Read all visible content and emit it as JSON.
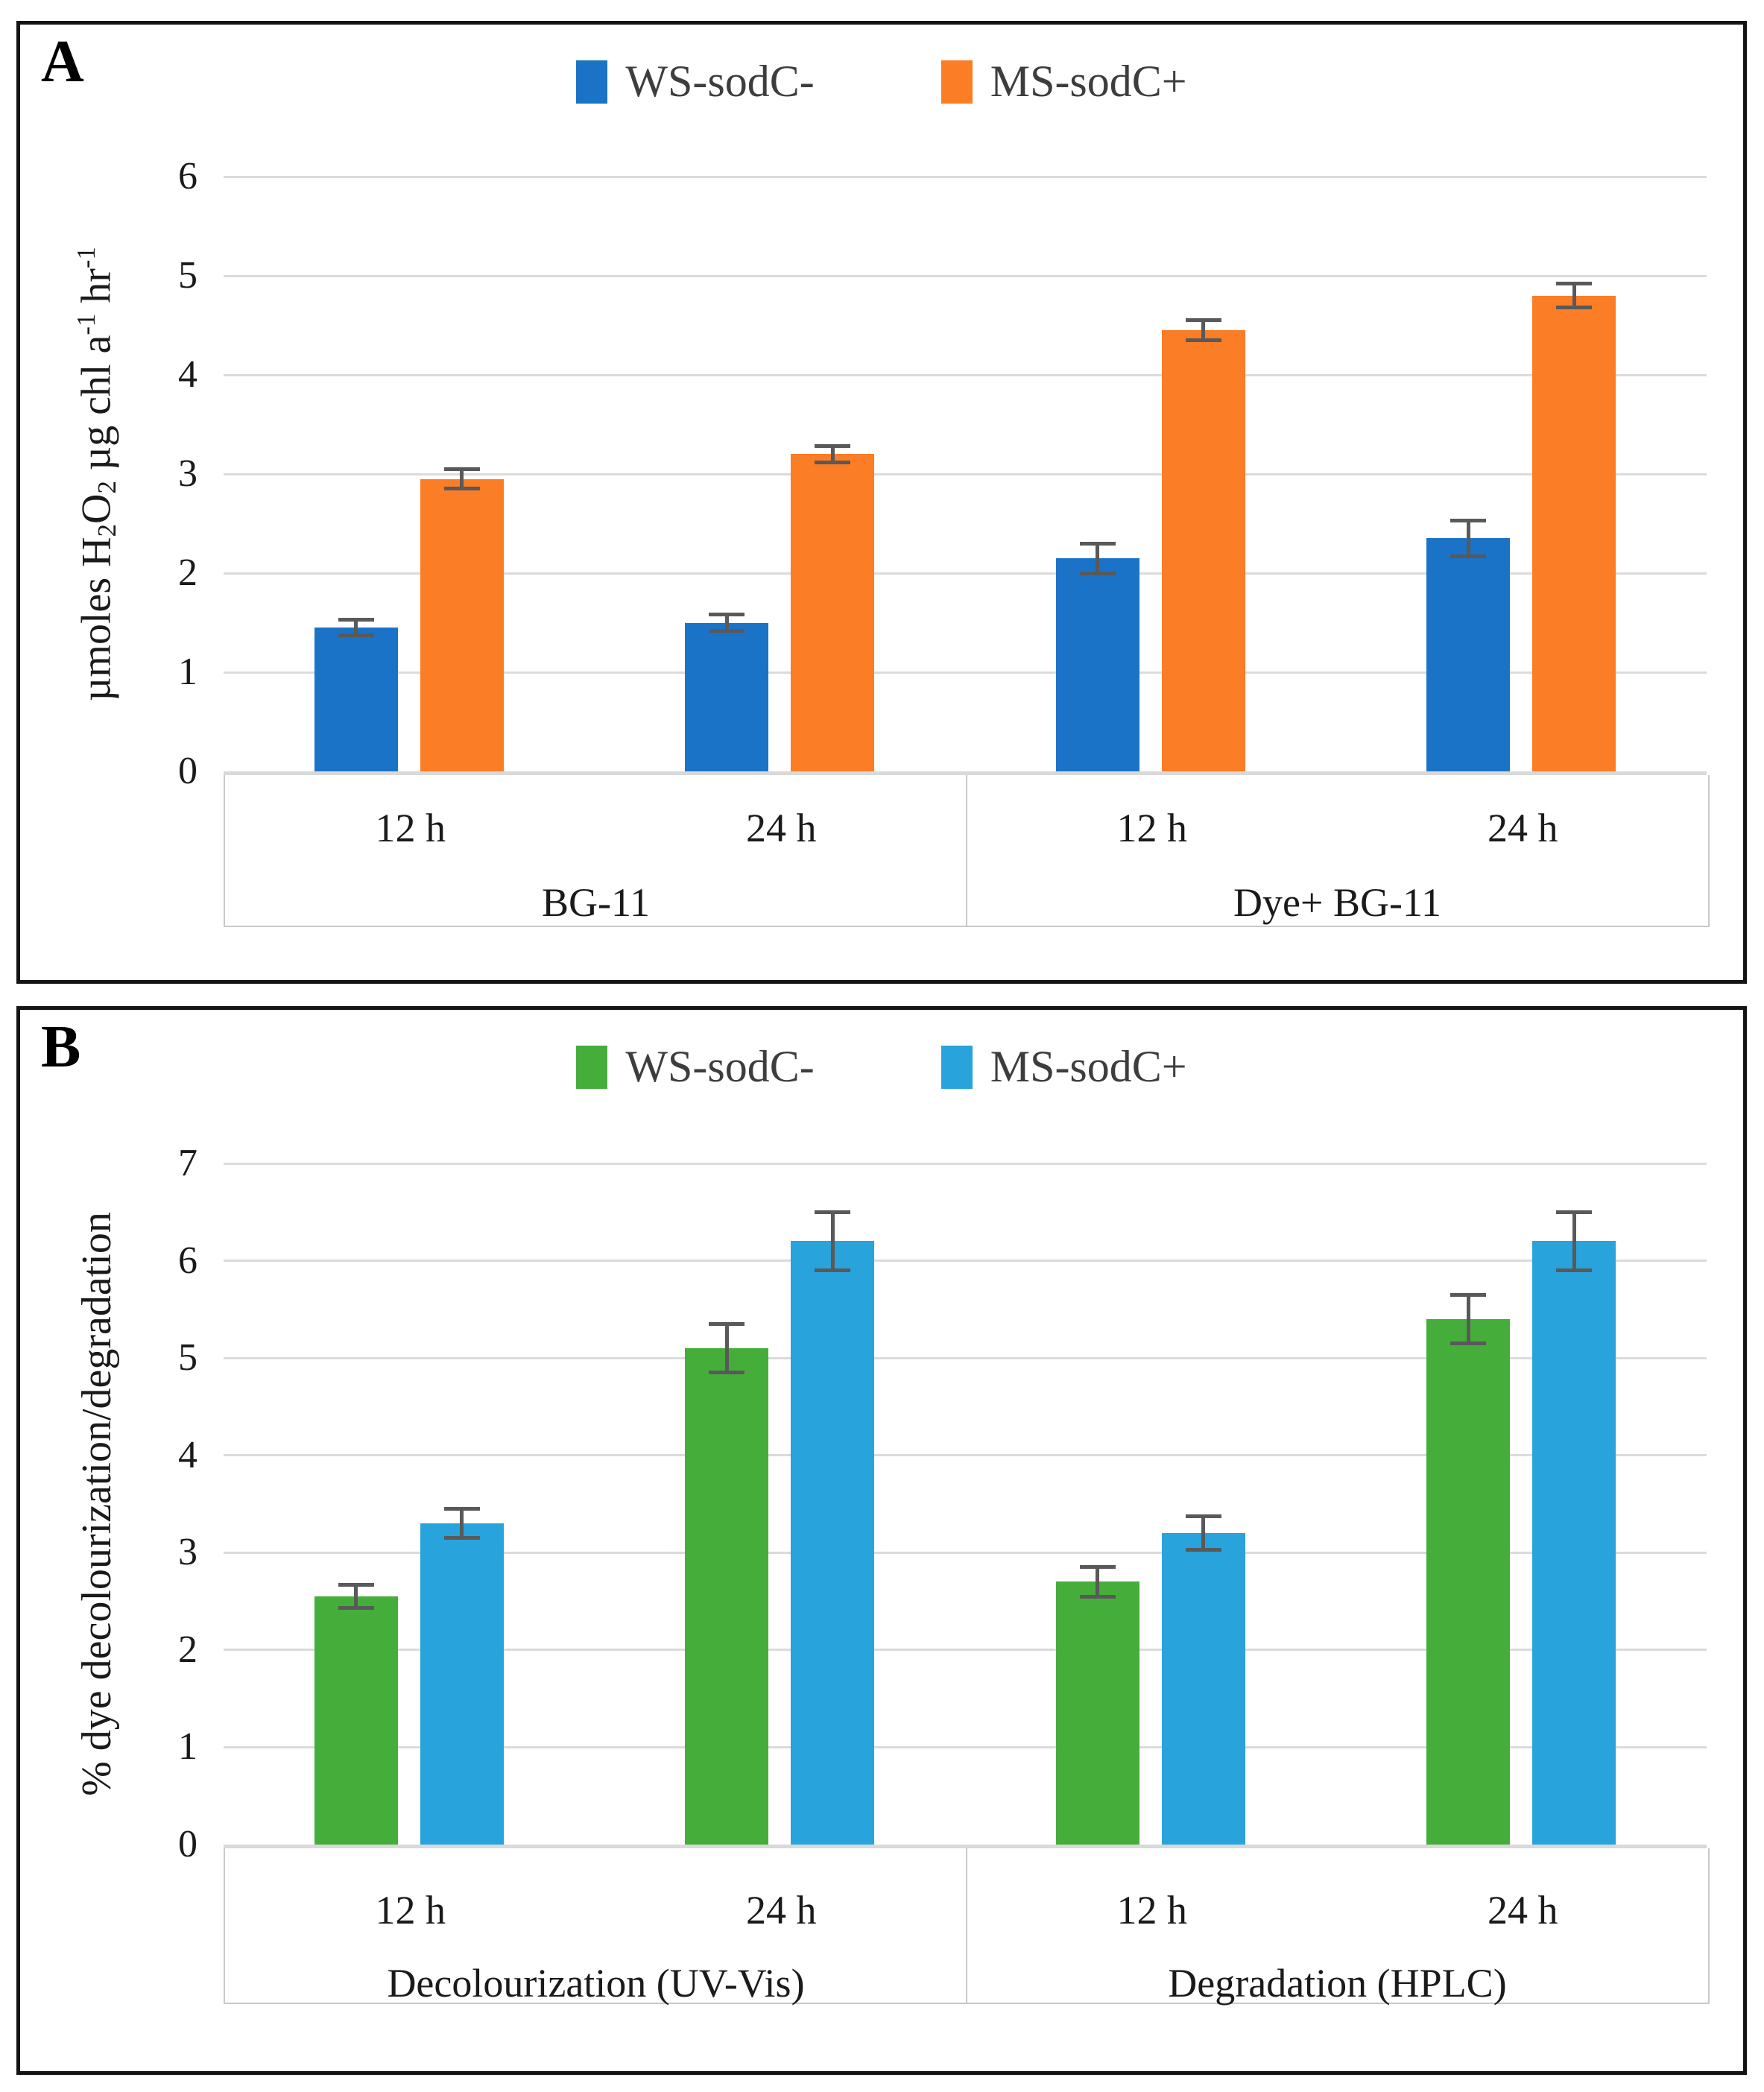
{
  "figure": {
    "panel_a": "A",
    "panel_b": "B"
  },
  "chart_data": [
    {
      "type": "bar",
      "panel": "A",
      "legend_position": "top",
      "categories": [
        "12 h",
        "24 h",
        "12 h",
        "24 h"
      ],
      "group_labels": [
        "BG-11",
        "Dye+ BG-11"
      ],
      "series": [
        {
          "name": "WS-sodC-",
          "color": "#1B73C8",
          "values": [
            1.45,
            1.5,
            2.15,
            2.35
          ],
          "errors": [
            0.08,
            0.08,
            0.15,
            0.18
          ]
        },
        {
          "name": "MS-sodC+",
          "color": "#FB7D26",
          "values": [
            2.95,
            3.2,
            4.45,
            4.8
          ],
          "errors": [
            0.1,
            0.08,
            0.1,
            0.12
          ]
        }
      ],
      "ylabel": "µmoles H2O2 µg chl a-1 hr-1",
      "ylabel_segments": [
        {
          "t": "µmoles H"
        },
        {
          "t": "2",
          "s": "sub"
        },
        {
          "t": "O"
        },
        {
          "t": "2",
          "s": "sub"
        },
        {
          "t": " µg chl a"
        },
        {
          "t": "-1",
          "s": "sup"
        },
        {
          "t": " hr"
        },
        {
          "t": "-1",
          "s": "sup"
        }
      ],
      "ylim": [
        0,
        6
      ],
      "yticks": [
        0,
        1,
        2,
        3,
        4,
        5,
        6
      ],
      "grid": true,
      "error_bar_color": "#595959"
    },
    {
      "type": "bar",
      "panel": "B",
      "legend_position": "top",
      "categories": [
        "12 h",
        "24 h",
        "12 h",
        "24 h"
      ],
      "group_labels": [
        "Decolourization (UV-Vis)",
        "Degradation (HPLC)"
      ],
      "series": [
        {
          "name": "WS-sodC-",
          "color": "#45AE3B",
          "values": [
            2.55,
            5.1,
            2.7,
            5.4
          ],
          "errors": [
            0.12,
            0.25,
            0.15,
            0.25
          ]
        },
        {
          "name": "MS-sodC+",
          "color": "#29A3DB",
          "values": [
            3.3,
            6.2,
            3.2,
            6.2
          ],
          "errors": [
            0.15,
            0.3,
            0.17,
            0.3
          ]
        }
      ],
      "ylabel": "% dye decolourization/degradation",
      "ylabel_segments": [
        {
          "t": "% dye decolourization/degradation"
        }
      ],
      "ylim": [
        0,
        7
      ],
      "yticks": [
        0,
        1,
        2,
        3,
        4,
        5,
        6,
        7
      ],
      "grid": true,
      "error_bar_color": "#595959"
    }
  ]
}
